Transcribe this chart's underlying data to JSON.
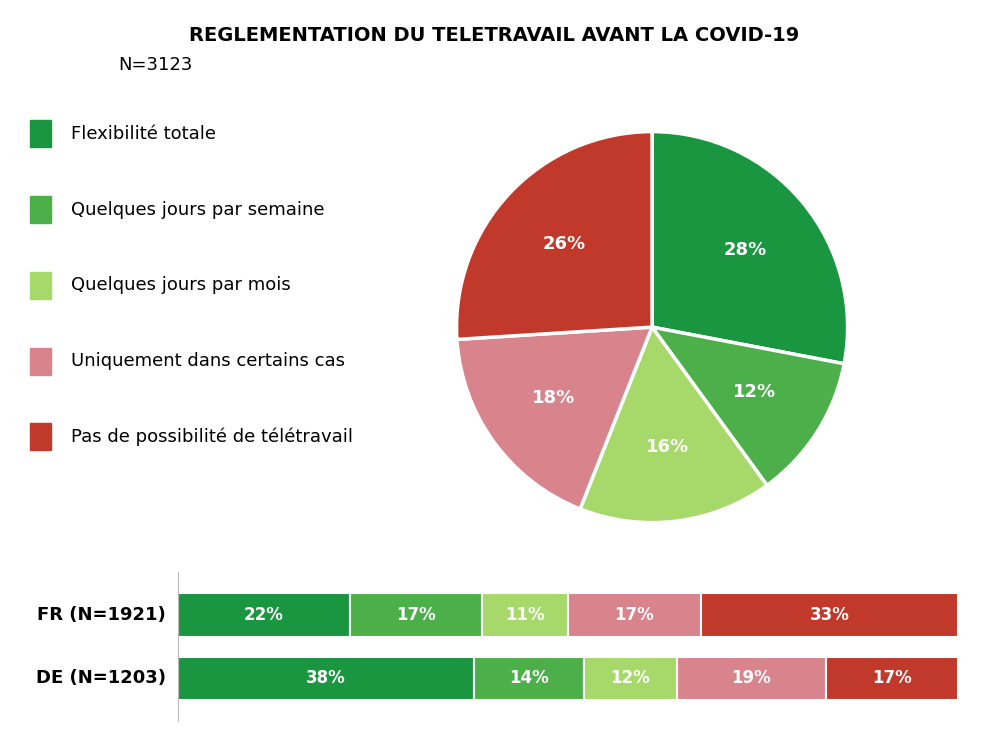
{
  "title_line1": "REGLEMENTATION DU TELETRAVAIL AVANT LA COVID-19",
  "title_line2": "N=3123",
  "pie_values": [
    28,
    12,
    16,
    18,
    26
  ],
  "pie_colors": [
    "#1a9641",
    "#4daf4a",
    "#a6d96a",
    "#d9838d",
    "#c0392b"
  ],
  "pie_labels": [
    "28%",
    "12%",
    "16%",
    "18%",
    "26%"
  ],
  "legend_labels": [
    "Flexibilité totale",
    "Quelques jours par semaine",
    "Quelques jours par mois",
    "Uniquement dans certains cas",
    "Pas de possibilité de télétravail"
  ],
  "legend_colors": [
    "#1a9641",
    "#4daf4a",
    "#a6d96a",
    "#d9838d",
    "#c0392b"
  ],
  "bar_rows": [
    {
      "label": "FR (N=1921)",
      "values": [
        22,
        17,
        11,
        17,
        33
      ],
      "colors": [
        "#1a9641",
        "#4daf4a",
        "#a6d96a",
        "#d9838d",
        "#c0392b"
      ]
    },
    {
      "label": "DE (N=1203)",
      "values": [
        38,
        14,
        12,
        19,
        17
      ],
      "colors": [
        "#1a9641",
        "#4daf4a",
        "#a6d96a",
        "#d9838d",
        "#c0392b"
      ]
    }
  ],
  "background_color": "#ffffff",
  "text_color": "#000000",
  "pie_startangle": 90,
  "pie_label_fontsize": 13,
  "bar_label_fontsize": 12,
  "legend_fontsize": 13,
  "title_fontsize": 14,
  "subtitle_fontsize": 13
}
